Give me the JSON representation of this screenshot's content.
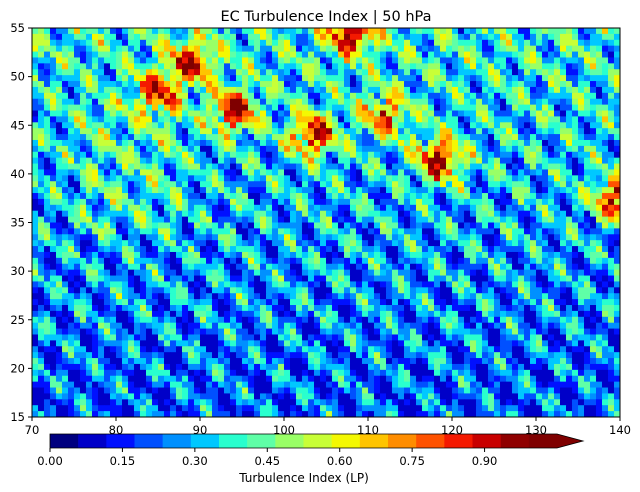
{
  "chart_data": {
    "type": "heatmap",
    "title": "EC Turbulence Index | 50 hPa",
    "xlabel": "",
    "ylabel": "",
    "xlim": [
      70,
      140
    ],
    "ylim": [
      15,
      55
    ],
    "x_ticks": [
      "70",
      "80",
      "90",
      "100",
      "110",
      "120",
      "130",
      "140"
    ],
    "y_ticks": [
      "15",
      "20",
      "25",
      "30",
      "35",
      "40",
      "45",
      "50",
      "55"
    ],
    "colorbar": {
      "label": "Turbulence Index (LP)",
      "min": 0.0,
      "max": 1.05,
      "step": 0.05,
      "extend": "max",
      "ticks": [
        "0.00",
        "0.15",
        "0.30",
        "0.45",
        "0.60",
        "0.75",
        "0.90"
      ],
      "colors": [
        "#00007f",
        "#0000c8",
        "#0010ff",
        "#0050ff",
        "#0090ff",
        "#00c8ff",
        "#29ffce",
        "#5fffa7",
        "#99ff66",
        "#c8ff37",
        "#f4f802",
        "#ffc400",
        "#ff8d00",
        "#ff5200",
        "#f41900",
        "#c80000",
        "#8f0000",
        "#7f0000"
      ]
    },
    "hotspots": [
      {
        "lon": 108,
        "lat": 54.5,
        "value": 0.95
      },
      {
        "lon": 94,
        "lat": 46.5,
        "value": 0.93
      },
      {
        "lon": 103.5,
        "lat": 44,
        "value": 0.92
      },
      {
        "lon": 118.5,
        "lat": 41.5,
        "value": 0.97
      },
      {
        "lon": 89,
        "lat": 51.5,
        "value": 0.85
      },
      {
        "lon": 139.5,
        "lat": 37.5,
        "value": 0.93
      },
      {
        "lon": 85,
        "lat": 48.5,
        "value": 0.8
      },
      {
        "lon": 112,
        "lat": 46,
        "value": 0.75
      }
    ]
  }
}
